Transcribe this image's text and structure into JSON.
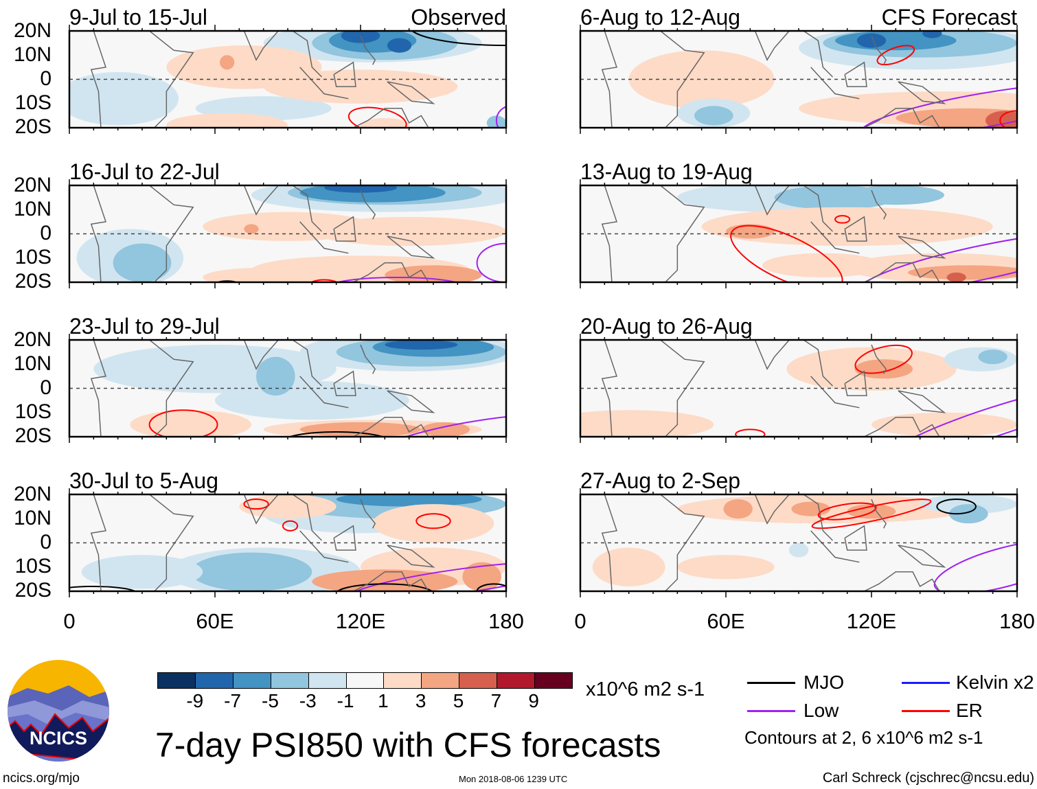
{
  "title": "7-day PSI850 with CFS forecasts",
  "source_url": "ncics.org/mjo",
  "timestamp": "Mon 2018-08-06 1239 UTC",
  "author": "Carl Schreck (cjschrec@ncsu.edu)",
  "logo_text": "NCICS",
  "chart_data": {
    "type": "heatmap",
    "title": "7-day PSI850 with CFS forecasts",
    "lat_ticks": [
      "20N",
      "10N",
      "0",
      "10S",
      "20S"
    ],
    "lon_ticks": [
      "0",
      "60E",
      "120E",
      "180"
    ],
    "lat_range": [
      -20,
      20
    ],
    "lon_range": [
      0,
      180
    ],
    "panels": [
      {
        "label": "9-Jul to 15-Jul",
        "tag": "Observed"
      },
      {
        "label": "16-Jul to 22-Jul",
        "tag": ""
      },
      {
        "label": "23-Jul to 29-Jul",
        "tag": ""
      },
      {
        "label": "30-Jul to 5-Aug",
        "tag": ""
      },
      {
        "label": "6-Aug to 12-Aug",
        "tag": "CFS Forecast"
      },
      {
        "label": "13-Aug to 19-Aug",
        "tag": ""
      },
      {
        "label": "20-Aug to 26-Aug",
        "tag": ""
      },
      {
        "label": "27-Aug to 2-Sep",
        "tag": ""
      }
    ],
    "colorbar": {
      "labels": [
        "-9",
        "-7",
        "-5",
        "-3",
        "-1",
        "1",
        "3",
        "5",
        "7",
        "9"
      ],
      "colors": [
        "#0a3161",
        "#2166ac",
        "#4393c3",
        "#92c5de",
        "#d1e5f0",
        "#f7f7f7",
        "#fddbc7",
        "#f4a582",
        "#d6604d",
        "#b2182b",
        "#67001f"
      ],
      "units": "x10^6 m2 s-1"
    },
    "legend": [
      {
        "label": "MJO",
        "color": "#000000"
      },
      {
        "label": "Kelvin x2",
        "color": "#1a1aff"
      },
      {
        "label": "Low",
        "color": "#a020f0"
      },
      {
        "label": "ER",
        "color": "#ff0000"
      }
    ],
    "contour_note": "Contours at 2, 6 x10^6 m2 s-1"
  }
}
